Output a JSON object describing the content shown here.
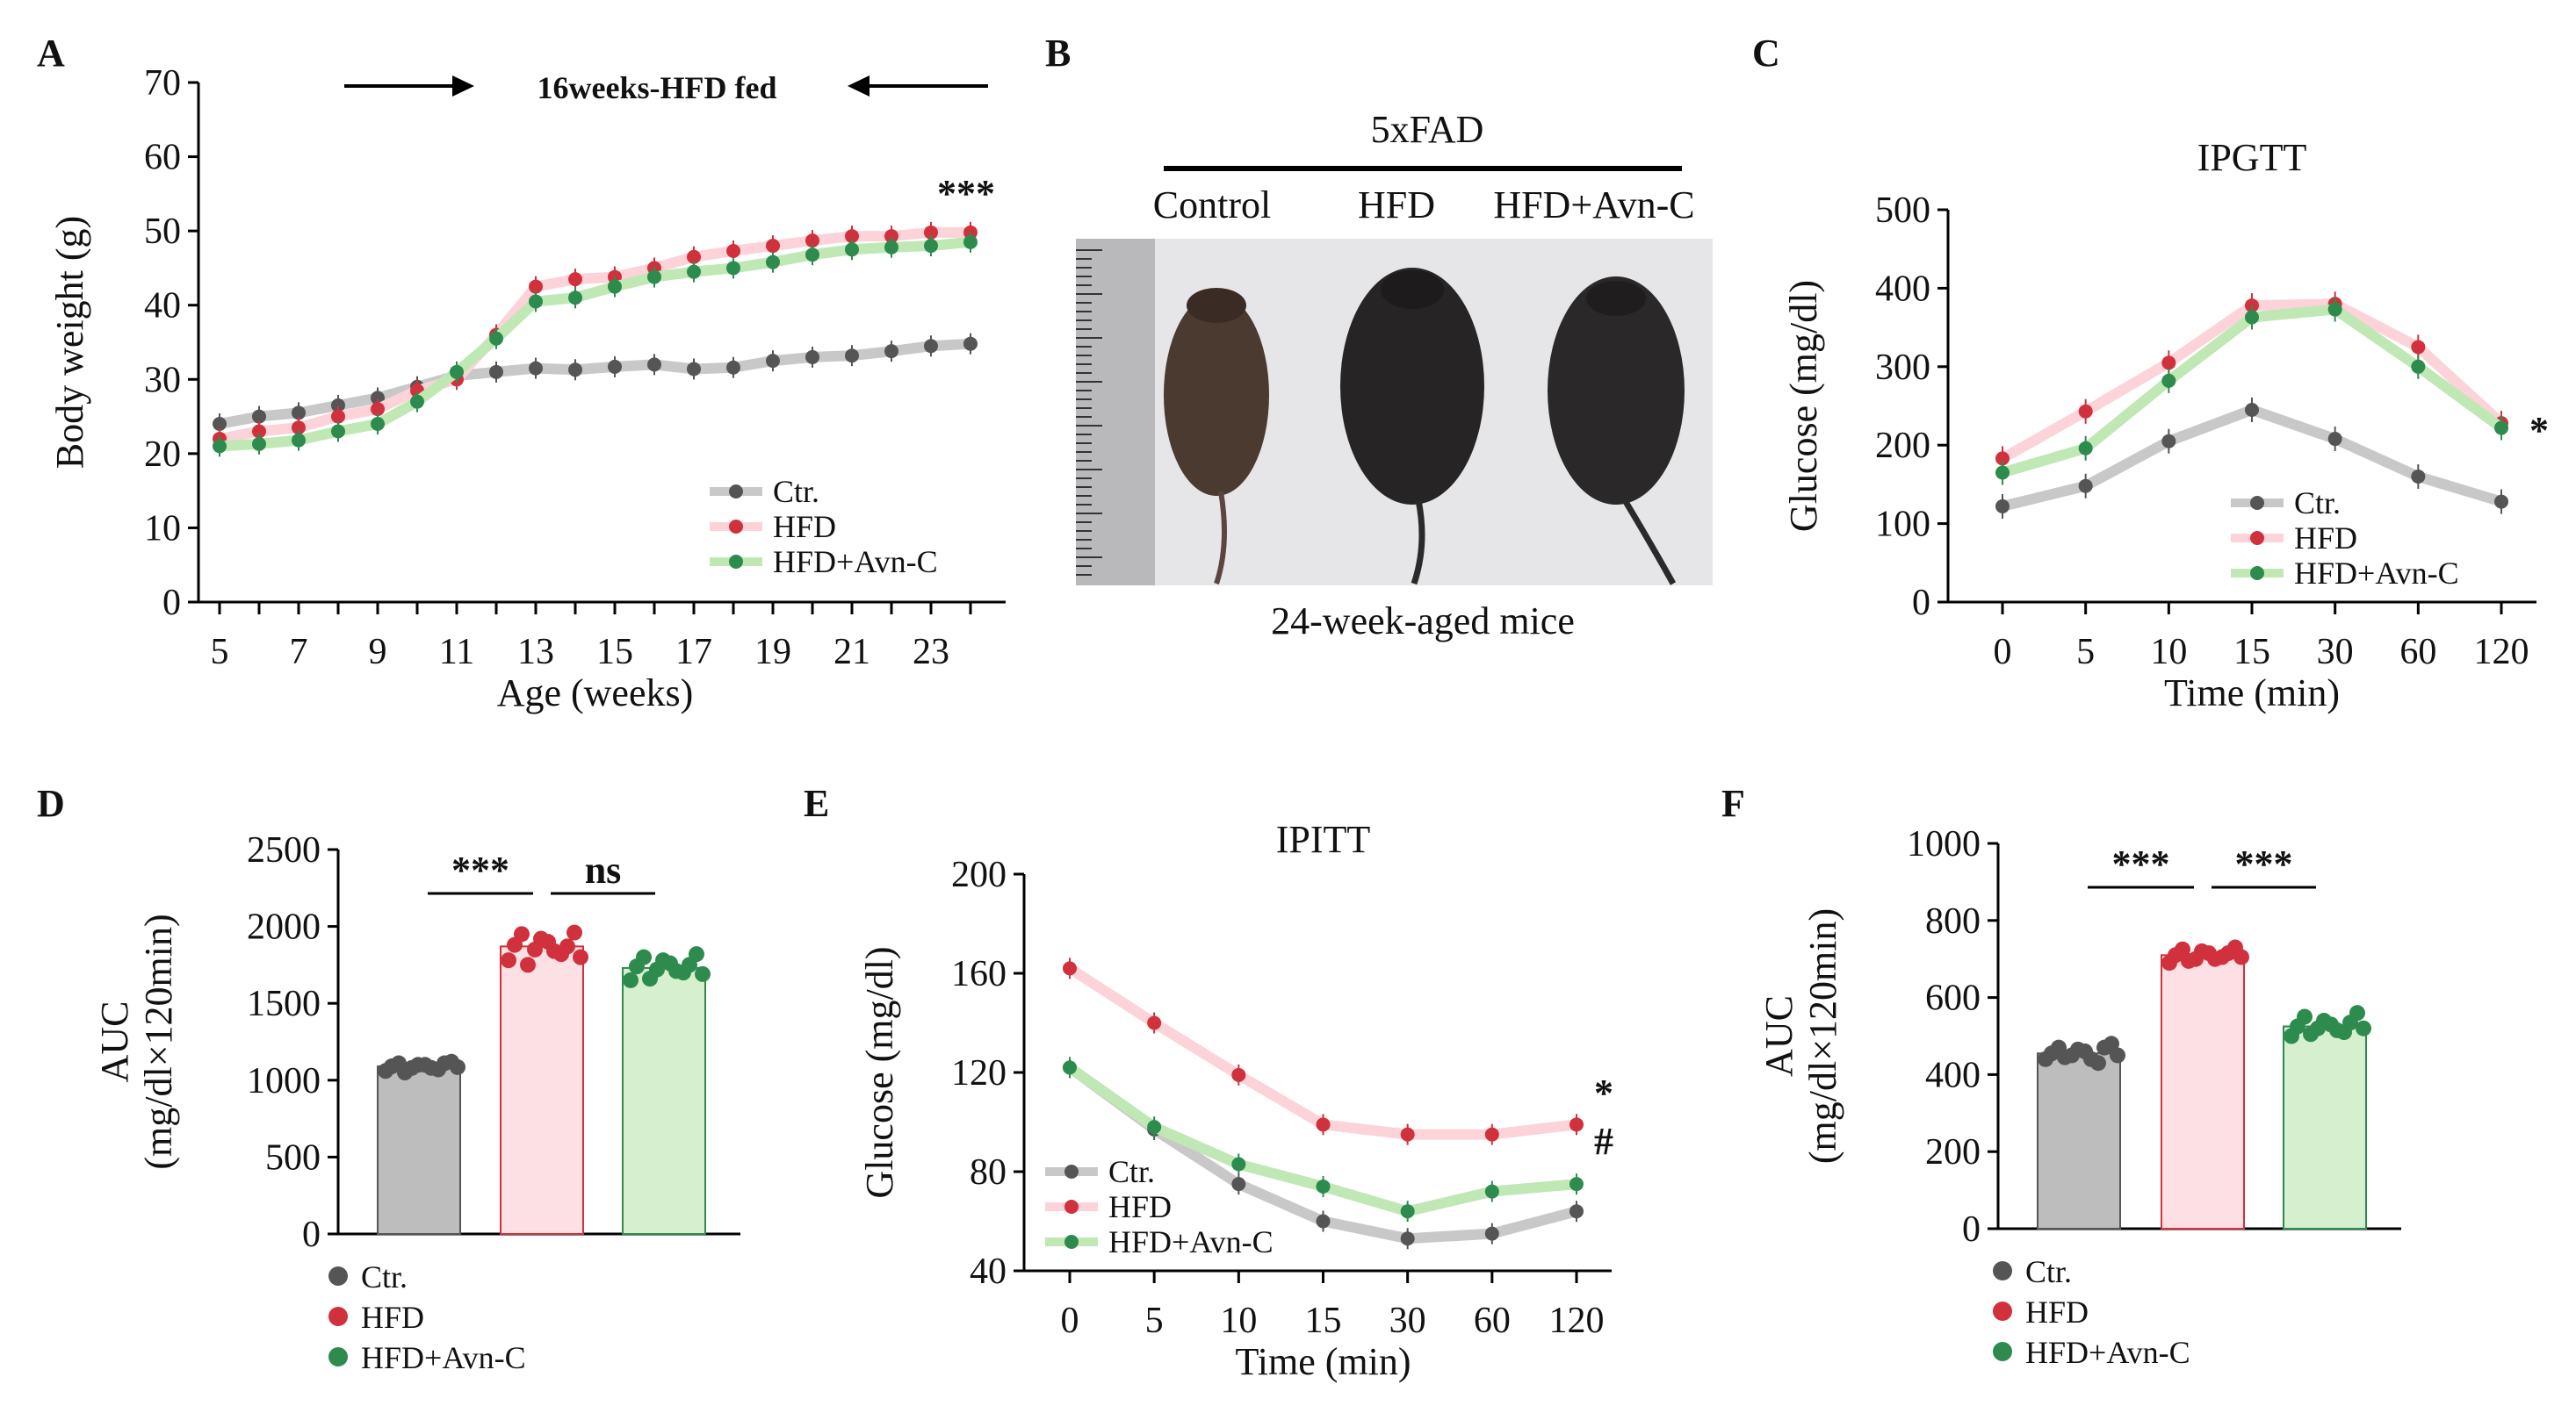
{
  "colors": {
    "ctr": "#555555",
    "hfd": "#d0313d",
    "avn": "#2e8b4e",
    "ctr_band": "#c8c8c8",
    "hfd_band": "#fbd3d8",
    "avn_band": "#bfe8b4",
    "ctr_bar": "#bdbdbd",
    "hfd_bar": "#fde0e4",
    "avn_bar": "#d6efcf"
  },
  "legend": [
    "Ctr.",
    "HFD",
    "HFD+Avn-C"
  ],
  "panel_b": {
    "label": "B",
    "strain": "5xFAD",
    "groups": [
      "Control",
      "HFD",
      "HFD+Avn-C"
    ],
    "caption": "24-week-aged mice"
  },
  "chart_data": [
    {
      "id": "A",
      "label": "A",
      "type": "line",
      "title": "",
      "annotation": "16weeks-HFD fed",
      "significance": "***",
      "xlabel": "Age (weeks)",
      "ylabel": "Body weight (g)",
      "ylim": [
        0,
        70
      ],
      "yticks": [
        0,
        10,
        20,
        30,
        40,
        50,
        60,
        70
      ],
      "xticks": [
        5,
        7,
        9,
        11,
        13,
        15,
        17,
        19,
        21,
        23
      ],
      "x": [
        5,
        6,
        7,
        8,
        9,
        10,
        11,
        12,
        13,
        14,
        15,
        16,
        17,
        18,
        19,
        20,
        21,
        22,
        23,
        24
      ],
      "series": [
        {
          "name": "Ctr.",
          "values": [
            24,
            25,
            25.5,
            26.5,
            27.5,
            29,
            30.5,
            31,
            31.5,
            31.3,
            31.7,
            32,
            31.4,
            31.6,
            32.5,
            33,
            33.2,
            33.8,
            34.5,
            34.8
          ]
        },
        {
          "name": "HFD",
          "values": [
            22,
            23,
            23.5,
            25,
            26,
            28.5,
            30,
            36,
            42.5,
            43.5,
            43.8,
            45,
            46.5,
            47.3,
            48,
            48.7,
            49.3,
            49.3,
            49.8,
            49.8
          ]
        },
        {
          "name": "HFD+Avn-C",
          "values": [
            21,
            21.3,
            21.8,
            23,
            24,
            27,
            31,
            35.5,
            40.5,
            41,
            42.5,
            43.8,
            44.5,
            45,
            45.8,
            46.8,
            47.5,
            47.8,
            48,
            48.5
          ]
        }
      ],
      "legend_position": "bottom-right"
    },
    {
      "id": "C",
      "label": "C",
      "type": "line",
      "title": "IPGTT",
      "significance": "*",
      "xlabel": "Time (min)",
      "ylabel": "Glucose (mg/dl)",
      "ylim": [
        0,
        500
      ],
      "yticks": [
        0,
        100,
        200,
        300,
        400,
        500
      ],
      "categories": [
        "0",
        "5",
        "10",
        "15",
        "30",
        "60",
        "120"
      ],
      "series": [
        {
          "name": "Ctr.",
          "values": [
            122,
            148,
            205,
            245,
            208,
            160,
            128
          ]
        },
        {
          "name": "HFD",
          "values": [
            183,
            243,
            305,
            378,
            380,
            325,
            228
          ]
        },
        {
          "name": "HFD+Avn-C",
          "values": [
            165,
            196,
            282,
            363,
            373,
            300,
            222
          ]
        }
      ],
      "legend_position": "bottom-right"
    },
    {
      "id": "D",
      "label": "D",
      "type": "bar",
      "title": "",
      "xlabel": "",
      "ylabel": "AUC\n(mg/dl×120min)",
      "ylabel_lines": [
        "AUC",
        "(mg/dl×120min)"
      ],
      "ylim": [
        0,
        2500
      ],
      "yticks": [
        0,
        500,
        1000,
        1500,
        2000,
        2500
      ],
      "categories": [
        "Ctr.",
        "HFD",
        "HFD+Avn-C"
      ],
      "values": [
        1090,
        1870,
        1730
      ],
      "points": [
        [
          1060,
          1110,
          1080,
          1100,
          1070,
          1120,
          1090,
          1050,
          1100,
          1080,
          1110,
          1085
        ],
        [
          1780,
          1950,
          1850,
          1900,
          1820,
          1960,
          1880,
          1750,
          1920,
          1840,
          1870,
          1800
        ],
        [
          1650,
          1800,
          1720,
          1760,
          1700,
          1820,
          1740,
          1660,
          1780,
          1710,
          1750,
          1690
        ]
      ],
      "comparisons": [
        {
          "pair": [
            0,
            1
          ],
          "label": "***"
        },
        {
          "pair": [
            1,
            2
          ],
          "label": "ns"
        }
      ],
      "legend_position": "bottom-left"
    },
    {
      "id": "E",
      "label": "E",
      "type": "line",
      "title": "IPITT",
      "significance": [
        "*",
        "#"
      ],
      "xlabel": "Time (min)",
      "ylabel": "Glucose (mg/dl)",
      "ylim": [
        40,
        200
      ],
      "yticks": [
        40,
        80,
        120,
        160,
        200
      ],
      "categories": [
        "0",
        "5",
        "10",
        "15",
        "30",
        "60",
        "120"
      ],
      "series": [
        {
          "name": "Ctr.",
          "values": [
            122,
            97,
            75,
            60,
            53,
            55,
            64
          ]
        },
        {
          "name": "HFD",
          "values": [
            162,
            140,
            119,
            99,
            95,
            95,
            99
          ]
        },
        {
          "name": "HFD+Avn-C",
          "values": [
            122,
            98,
            83,
            74,
            64,
            72,
            75
          ]
        }
      ],
      "legend_position": "bottom-left"
    },
    {
      "id": "F",
      "label": "F",
      "type": "bar",
      "title": "",
      "xlabel": "",
      "ylabel_lines": [
        "AUC",
        "(mg/dl×120min)"
      ],
      "ylim": [
        0,
        1000
      ],
      "yticks": [
        0,
        200,
        400,
        600,
        800,
        1000
      ],
      "categories": [
        "Ctr.",
        "HFD",
        "HFD+Avn-C"
      ],
      "values": [
        455,
        710,
        525
      ],
      "points": [
        [
          440,
          470,
          450,
          460,
          430,
          480,
          455,
          445,
          465,
          440,
          470,
          450
        ],
        [
          690,
          725,
          700,
          715,
          705,
          730,
          710,
          695,
          720,
          700,
          715,
          705
        ],
        [
          500,
          550,
          520,
          530,
          510,
          560,
          525,
          505,
          540,
          515,
          535,
          520
        ]
      ],
      "comparisons": [
        {
          "pair": [
            0,
            1
          ],
          "label": "***"
        },
        {
          "pair": [
            1,
            2
          ],
          "label": "***"
        }
      ],
      "legend_position": "bottom-left"
    }
  ]
}
